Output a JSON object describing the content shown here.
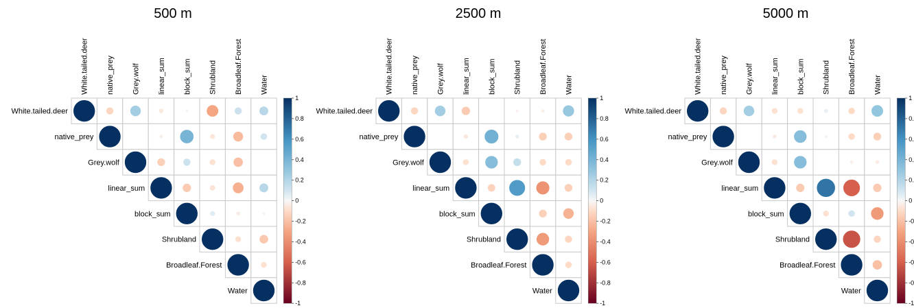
{
  "colorscale": {
    "negative_end": "#67001f",
    "neg_mid": "#d6604d",
    "neg_light": "#f4a582",
    "neg_pale": "#fddbc7",
    "zero": "#f7f7f7",
    "pos_pale": "#d1e5f0",
    "pos_light": "#92c5de",
    "pos_mid": "#4393c3",
    "positive_end": "#053061",
    "ticks": [
      "1",
      "0.8",
      "0.6",
      "0.4",
      "0.2",
      "0",
      "-0.2",
      "-0.4",
      "-0.6",
      "-0.8",
      "-1"
    ]
  },
  "chart_data": [
    {
      "type": "heatmap",
      "title": "500 m",
      "variables": [
        "White.tailed.deer",
        "native_prey",
        "Grey.wolf",
        "linear_sum",
        "block_sum",
        "Shrubland",
        "Broadleaf.Forest",
        "Water"
      ],
      "matrix": [
        [
          1,
          -0.12,
          0.25,
          -0.05,
          -0.02,
          -0.3,
          0.12,
          0.18
        ],
        [
          null,
          1,
          0.0,
          -0.03,
          0.4,
          -0.06,
          -0.22,
          0.1
        ],
        [
          null,
          null,
          1,
          -0.14,
          0.12,
          -0.08,
          -0.2,
          0.0
        ],
        [
          null,
          null,
          null,
          1,
          -0.16,
          -0.07,
          -0.26,
          0.18
        ],
        [
          null,
          null,
          null,
          null,
          1,
          0.06,
          -0.04,
          -0.02
        ],
        [
          null,
          null,
          null,
          null,
          null,
          1,
          -0.08,
          -0.17
        ],
        [
          null,
          null,
          null,
          null,
          null,
          null,
          1,
          -0.08
        ],
        [
          null,
          null,
          null,
          null,
          null,
          null,
          null,
          1
        ]
      ],
      "legend": "right",
      "range": [
        -1,
        1
      ]
    },
    {
      "type": "heatmap",
      "title": "2500 m",
      "variables": [
        "White.tailed.deer",
        "native_prey",
        "Grey.wolf",
        "linear_sum",
        "block_sum",
        "Shrubland",
        "Broadleaf.Forest",
        "Water"
      ],
      "matrix": [
        [
          1,
          -0.12,
          0.25,
          -0.16,
          0.0,
          -0.02,
          -0.03,
          0.28
        ],
        [
          null,
          1,
          0.0,
          -0.05,
          0.42,
          0.04,
          -0.14,
          -0.14
        ],
        [
          null,
          null,
          1,
          -0.08,
          0.35,
          0.14,
          -0.1,
          -0.1
        ],
        [
          null,
          null,
          null,
          1,
          -0.13,
          0.55,
          -0.38,
          -0.14
        ],
        [
          null,
          null,
          null,
          null,
          1,
          0.0,
          -0.14,
          -0.25
        ],
        [
          null,
          null,
          null,
          null,
          null,
          1,
          -0.35,
          -0.12
        ],
        [
          null,
          null,
          null,
          null,
          null,
          null,
          1,
          -0.1
        ],
        [
          null,
          null,
          null,
          null,
          null,
          null,
          null,
          1
        ]
      ],
      "legend": "right",
      "range": [
        -1,
        1
      ]
    },
    {
      "type": "heatmap",
      "title": "5000 m",
      "variables": [
        "White.tailed.deer",
        "native_prey",
        "Grey.wolf",
        "linear_sum",
        "block_sum",
        "Shrubland",
        "Broadleaf.Forest",
        "Water"
      ],
      "matrix": [
        [
          1,
          -0.12,
          0.25,
          -0.08,
          -0.08,
          0.04,
          -0.1,
          0.3
        ],
        [
          null,
          1,
          0.0,
          -0.04,
          0.35,
          0.02,
          -0.1,
          -0.14
        ],
        [
          null,
          null,
          1,
          -0.08,
          0.35,
          0.0,
          -0.03,
          -0.04
        ],
        [
          null,
          null,
          null,
          1,
          -0.16,
          0.72,
          -0.6,
          -0.16
        ],
        [
          null,
          null,
          null,
          null,
          1,
          -0.08,
          0.1,
          -0.35
        ],
        [
          null,
          null,
          null,
          null,
          null,
          1,
          -0.65,
          -0.12
        ],
        [
          null,
          null,
          null,
          null,
          null,
          null,
          1,
          -0.2
        ],
        [
          null,
          null,
          null,
          null,
          null,
          null,
          null,
          1
        ]
      ],
      "legend": "right",
      "range": [
        -1,
        1
      ]
    }
  ]
}
